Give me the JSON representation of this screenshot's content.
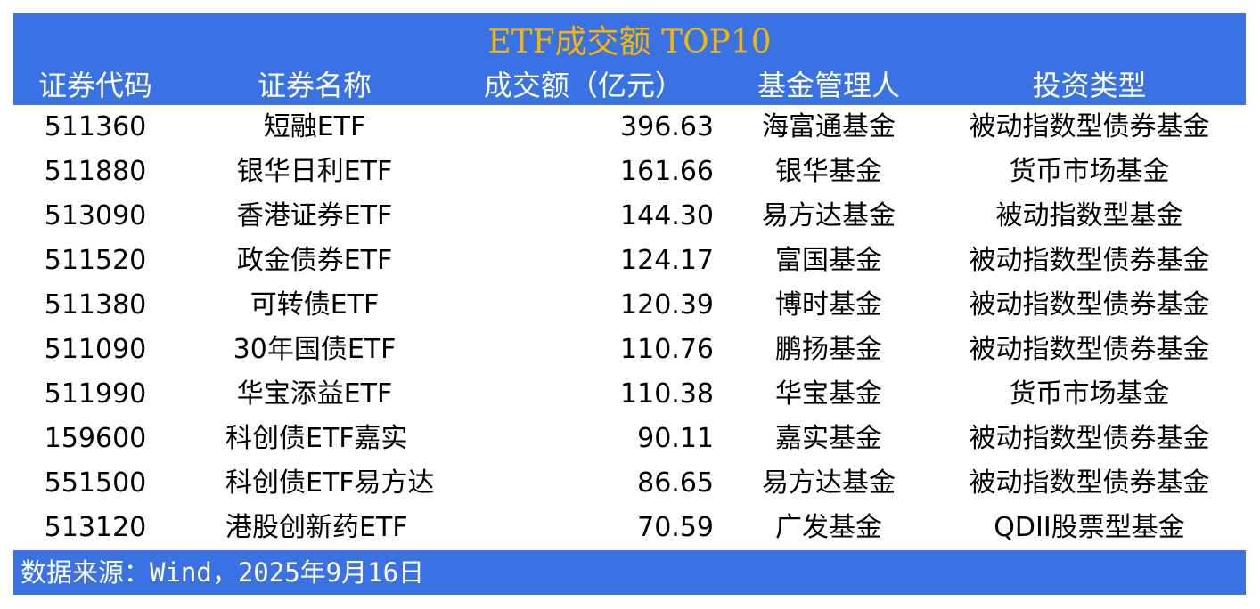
{
  "title": "ETF成交额 TOP10",
  "columns": [
    "证券代码",
    "证券名称",
    "成交额（亿元）",
    "基金管理人",
    "投资类型"
  ],
  "rows": [
    [
      "511360",
      "短融ETF",
      "396.63",
      "海富通基金",
      "被动指数型债券基金"
    ],
    [
      "511880",
      "银华日利ETF",
      "161.66",
      "银华基金",
      "货币市场基金"
    ],
    [
      "513090",
      "香港证券ETF",
      "144.30",
      "易方达基金",
      "被动指数型基金"
    ],
    [
      "511520",
      "政金债券ETF",
      "124.17",
      "富国基金",
      "被动指数型债券基金"
    ],
    [
      "511380",
      "可转债ETF",
      "120.39",
      "博时基金",
      "被动指数型债券基金"
    ],
    [
      "511090",
      "30年国债ETF",
      "110.76",
      "鹏扬基金",
      "被动指数型债券基金"
    ],
    [
      "511990",
      "华宝添益ETF",
      "110.38",
      "华宝基金",
      "货币市场基金"
    ],
    [
      "159600",
      "科创债ETF嘉实",
      "90.11",
      "嘉实基金",
      "被动指数型债券基金"
    ],
    [
      "551500",
      "科创债ETF易方达",
      "86.65",
      "易方达基金",
      "被动指数型债券基金"
    ],
    [
      "513120",
      "港股创新药ETF",
      "70.59",
      "广发基金",
      "QDII股票型基金"
    ]
  ],
  "source": "数据来源：Wind，2025年9月16日",
  "colors": {
    "band": "#3a72e4",
    "title": "#f7b500"
  }
}
